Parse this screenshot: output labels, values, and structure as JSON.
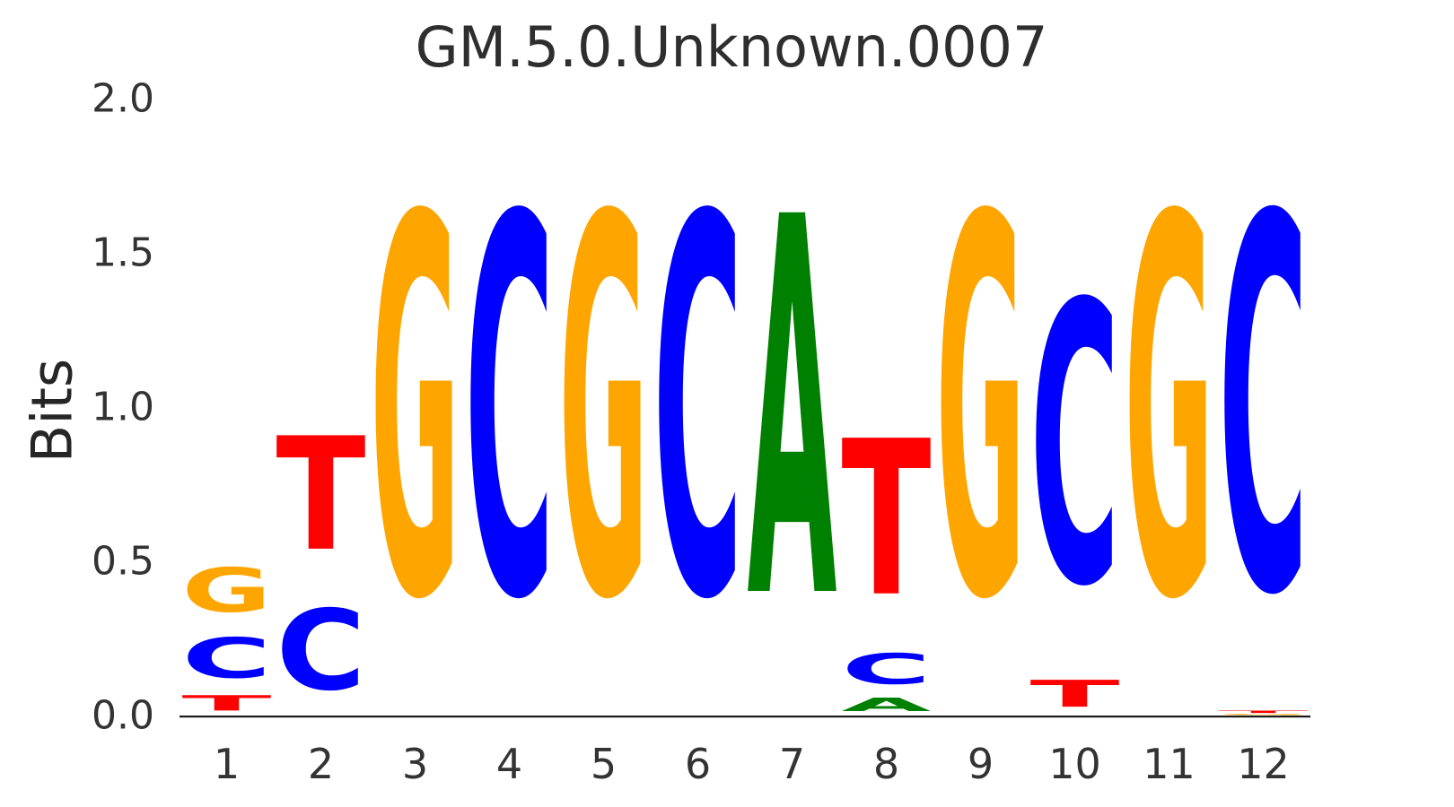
{
  "chart_data": {
    "type": "sequence_logo",
    "title": "GM.5.0.Unknown.0007",
    "ylabel": "Bits",
    "xlabel": "",
    "ylim": [
      0.0,
      2.0
    ],
    "y_ticks": [
      "0.0",
      "0.5",
      "1.0",
      "1.5",
      "2.0"
    ],
    "grid": false,
    "legend": false,
    "axis_line_color": "#1a1a1a",
    "letter_colors": {
      "A": "#008000",
      "C": "#0000ff",
      "G": "#ffa500",
      "T": "#ff0000"
    },
    "stacks": [
      {
        "position": 1,
        "letters": [
          {
            "base": "T",
            "bits": 0.08
          },
          {
            "base": "C",
            "bits": 0.21
          },
          {
            "base": "G",
            "bits": 0.23
          }
        ]
      },
      {
        "position": 2,
        "letters": [
          {
            "base": "C",
            "bits": 0.42
          },
          {
            "base": "T",
            "bits": 0.59
          }
        ]
      },
      {
        "position": 3,
        "letters": [
          {
            "base": "G",
            "bits": 1.97
          }
        ]
      },
      {
        "position": 4,
        "letters": [
          {
            "base": "C",
            "bits": 1.97
          }
        ]
      },
      {
        "position": 5,
        "letters": [
          {
            "base": "G",
            "bits": 1.97
          }
        ]
      },
      {
        "position": 6,
        "letters": [
          {
            "base": "C",
            "bits": 1.97
          }
        ]
      },
      {
        "position": 7,
        "letters": [
          {
            "base": "A",
            "bits": 1.97
          }
        ]
      },
      {
        "position": 8,
        "letters": [
          {
            "base": "A",
            "bits": 0.07
          },
          {
            "base": "C",
            "bits": 0.16
          },
          {
            "base": "T",
            "bits": 0.81
          }
        ]
      },
      {
        "position": 9,
        "letters": [
          {
            "base": "G",
            "bits": 1.97
          }
        ]
      },
      {
        "position": 10,
        "letters": [
          {
            "base": "T",
            "bits": 0.14
          },
          {
            "base": "C",
            "bits": 1.46
          }
        ]
      },
      {
        "position": 11,
        "letters": [
          {
            "base": "G",
            "bits": 1.97
          }
        ]
      },
      {
        "position": 12,
        "letters": [
          {
            "base": "G",
            "bits": 0.006
          },
          {
            "base": "T",
            "bits": 0.012
          },
          {
            "base": "C",
            "bits": 1.95
          }
        ]
      }
    ]
  }
}
